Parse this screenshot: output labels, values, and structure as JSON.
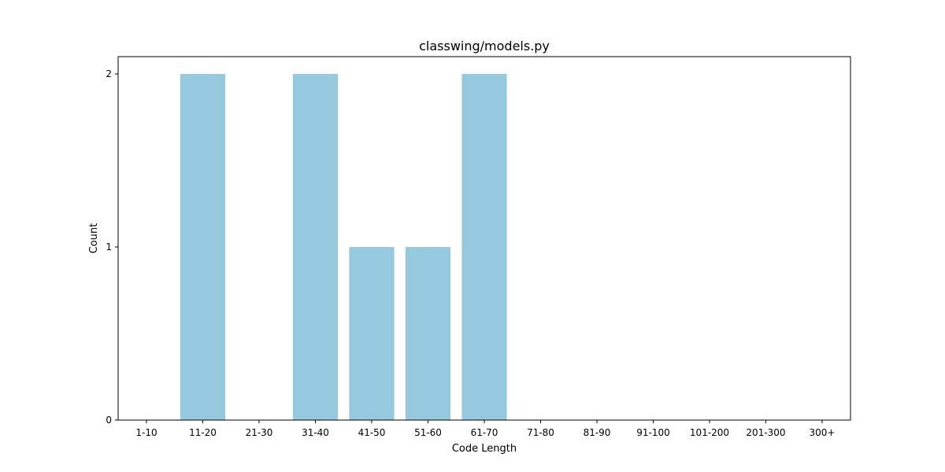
{
  "chart_data": {
    "type": "bar",
    "title": "classwing/models.py",
    "xlabel": "Code Length",
    "ylabel": "Count",
    "categories": [
      "1-10",
      "11-20",
      "21-30",
      "31-40",
      "41-50",
      "51-60",
      "61-70",
      "71-80",
      "81-90",
      "91-100",
      "101-200",
      "201-300",
      "300+"
    ],
    "values": [
      0,
      2,
      0,
      2,
      1,
      1,
      2,
      0,
      0,
      0,
      0,
      0,
      0
    ],
    "ylim": [
      0,
      2.1
    ],
    "yticks": [
      0,
      1,
      2
    ],
    "grid": false,
    "bar_color": "#96c9dd"
  }
}
